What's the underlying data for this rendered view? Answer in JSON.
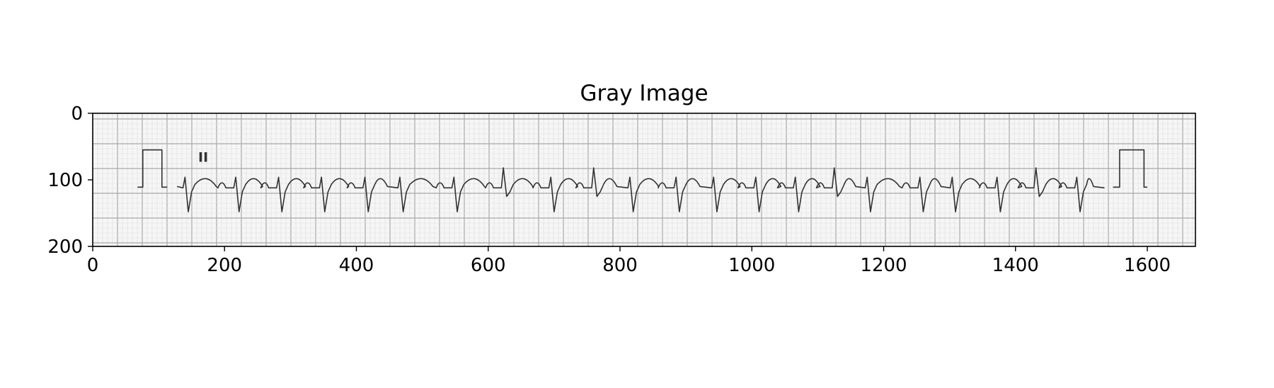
{
  "chart_data": {
    "type": "image",
    "title": "Gray Image",
    "xlabel": "",
    "ylabel": "",
    "xlim": [
      0,
      1673
    ],
    "ylim": [
      200,
      0
    ],
    "xticks": [
      0,
      200,
      400,
      600,
      800,
      1000,
      1200,
      1400,
      1600
    ],
    "yticks": [
      0,
      100,
      200
    ],
    "image_content": "ECG rhythm strip on grid paper",
    "lead_label": "II",
    "calibration_pulses": [
      {
        "x_start": 68,
        "x_end": 105,
        "baseline_y": 111,
        "top_y": 55
      },
      {
        "x_start": 1548,
        "x_end": 1600,
        "baseline_y": 111,
        "top_y": 55
      }
    ],
    "qrs_x": [
      145,
      222,
      287,
      352,
      418,
      471,
      553,
      628,
      700,
      765,
      820,
      890,
      947,
      1011,
      1071,
      1130,
      1180,
      1260,
      1309,
      1377,
      1436,
      1498
    ],
    "colors": {
      "trace": "#333333",
      "grid_minor": "#dcdcdc",
      "grid_major": "#a8a8a8",
      "paper": "#f6f6f6"
    }
  }
}
